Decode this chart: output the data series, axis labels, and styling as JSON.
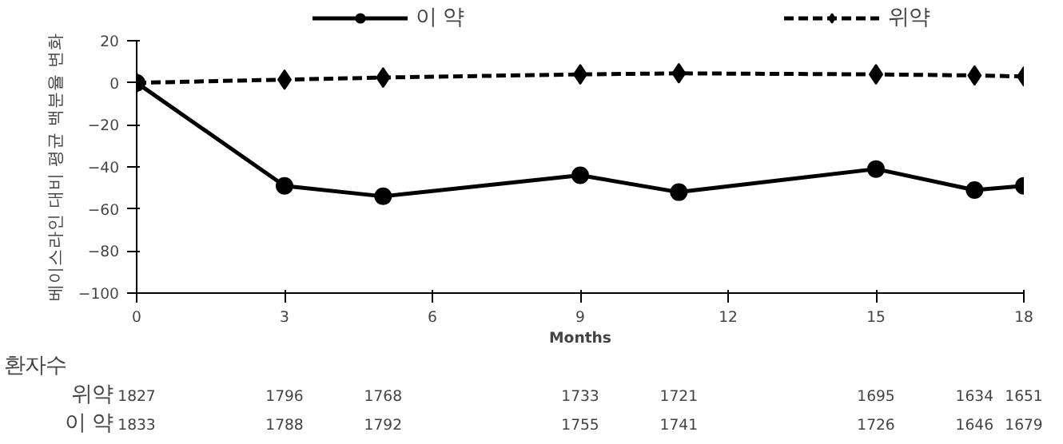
{
  "chart_data": {
    "type": "line",
    "xlabel": "Months",
    "ylabel": "베이스라인 대비 평균 백분율 변화",
    "xlim": [
      0,
      18
    ],
    "xticks": [
      0,
      3,
      6,
      9,
      12,
      15,
      18
    ],
    "ylim": [
      -100,
      20
    ],
    "yticks": [
      -100,
      -80,
      -60,
      -40,
      -20,
      0,
      20
    ],
    "grid": false,
    "legend": "top",
    "series": [
      {
        "name": "이 약",
        "color": "#000000",
        "marker": "circle",
        "line_style": "solid",
        "x": [
          0,
          3,
          5,
          9,
          11,
          15,
          17,
          18
        ],
        "values": [
          0,
          -49,
          -54,
          -44,
          -52,
          -41,
          -51,
          -49
        ]
      },
      {
        "name": "위약",
        "color": "#000000",
        "marker": "diamond",
        "line_style": "dashed",
        "x": [
          0,
          3,
          5,
          9,
          11,
          15,
          17,
          18
        ],
        "values": [
          0,
          1.5,
          2.5,
          4,
          4.5,
          4,
          3.5,
          3
        ]
      }
    ],
    "annotations": [
      "환자수",
      "위약",
      "1827",
      "1796",
      "1768",
      "1733",
      "1721",
      "1695",
      "1634",
      "1651",
      "이 약",
      "1833",
      "1788",
      "1792",
      "1755",
      "1741",
      "1726",
      "1646",
      "1679"
    ]
  }
}
